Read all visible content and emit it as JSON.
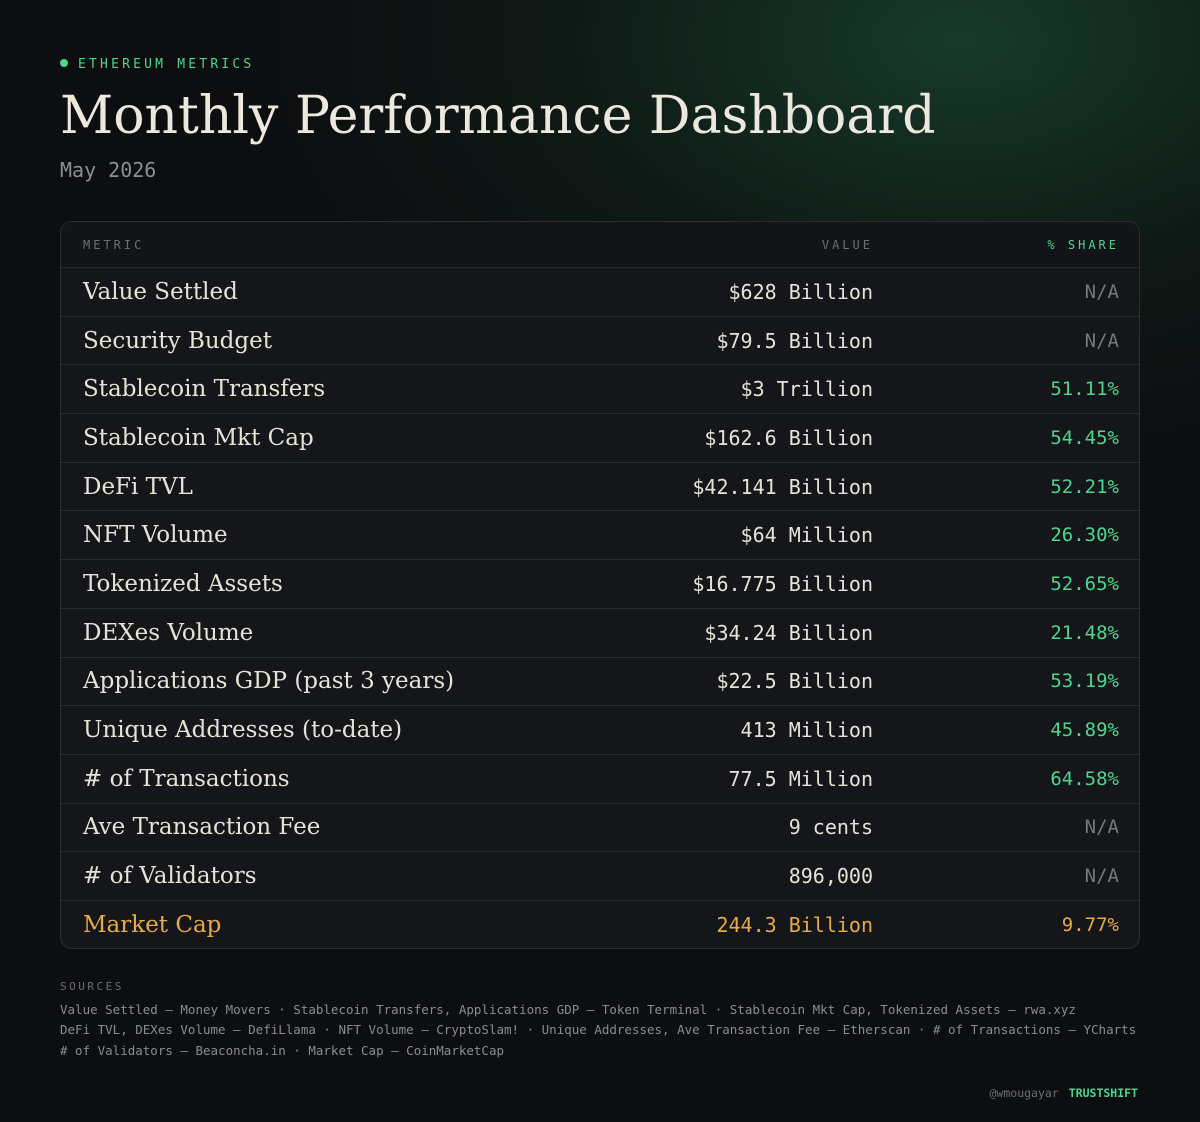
{
  "header": {
    "eyebrow": "ETHEREUM METRICS",
    "title": "Monthly Performance Dashboard",
    "subtitle": "May 2026"
  },
  "table": {
    "columns": [
      "METRIC",
      "VALUE",
      "% SHARE"
    ],
    "rows": [
      [
        "Value Settled",
        "$628 Billion",
        "N/A"
      ],
      [
        "Security Budget",
        "$79.5 Billion",
        "N/A"
      ],
      [
        "Stablecoin Transfers",
        "$3 Trillion",
        "51.11%"
      ],
      [
        "Stablecoin Mkt Cap",
        "$162.6 Billion",
        "54.45%"
      ],
      [
        "DeFi TVL",
        "$42.141 Billion",
        "52.21%"
      ],
      [
        "NFT Volume",
        "$64 Million",
        "26.30%"
      ],
      [
        "Tokenized Assets",
        "$16.775 Billion",
        "52.65%"
      ],
      [
        "DEXes Volume",
        "$34.24 Billion",
        "21.48%"
      ],
      [
        "Applications GDP (past 3 years)",
        "$22.5 Billion",
        "53.19%"
      ],
      [
        "Unique Addresses (to-date)",
        "413 Million",
        "45.89%"
      ],
      [
        "# of Transactions",
        "77.5 Million",
        "64.58%"
      ],
      [
        "Ave Transaction Fee",
        "9 cents",
        "N/A"
      ],
      [
        "# of Validators",
        "896,000",
        "N/A"
      ],
      [
        "Market Cap",
        "244.3 Billion",
        "9.77%"
      ]
    ]
  },
  "sources": {
    "label": "SOURCES",
    "lines": [
      "Value Settled — Money Movers · Stablecoin Transfers, Applications GDP — Token Terminal · Stablecoin Mkt Cap, Tokenized Assets — rwa.xyz",
      "DeFi TVL, DEXes Volume — DefiLlama · NFT Volume — CryptoSlam! · Unique Addresses, Ave Transaction Fee — Etherscan · # of Transactions — YCharts",
      "# of Validators — Beaconcha.in · Market Cap — CoinMarketCap"
    ]
  },
  "footer": {
    "handle": "@wmougayar",
    "brand": "TRUSTSHIFT"
  }
}
